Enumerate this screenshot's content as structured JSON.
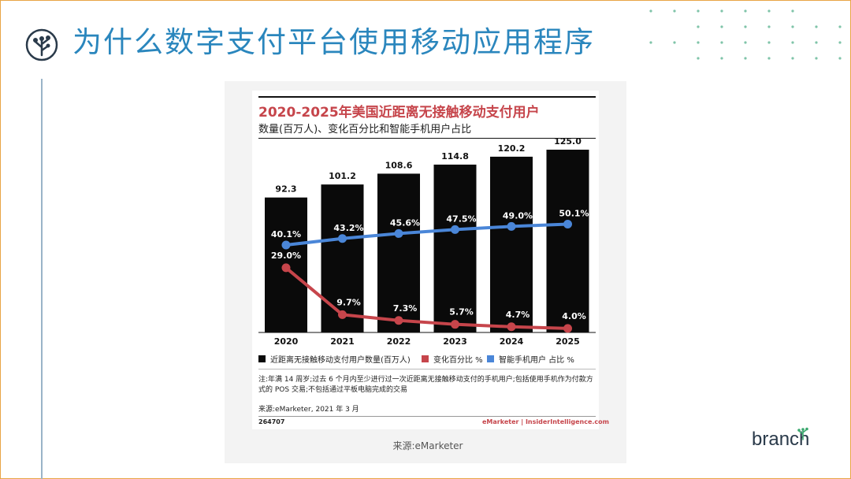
{
  "slide": {
    "title": "为什么数字支付平台使用移动应用程序",
    "caption": "来源:eMarketer",
    "brand": "branch"
  },
  "colors": {
    "title": "#2a86bd",
    "bar": "#0a0a0a",
    "change_line": "#c6454b",
    "smartphone_line": "#4a86d8",
    "frame": "#e8a545"
  },
  "icons": [
    "tree-logo-icon",
    "dot-grid-decoration",
    "sprig-icon"
  ],
  "chart_data": {
    "type": "bar",
    "title": "2020-2025年美国近距离无接触移动支付用户",
    "subtitle": "数量(百万人)、变化百分比和智能手机用户占比",
    "categories": [
      "2020",
      "2021",
      "2022",
      "2023",
      "2024",
      "2025"
    ],
    "series": [
      {
        "name": "近距离无接触移动支付用户数量(百万人)",
        "kind": "bar",
        "values": [
          92.3,
          101.2,
          108.6,
          114.8,
          120.2,
          125.0
        ],
        "labels": [
          "92.3",
          "101.2",
          "108.6",
          "114.8",
          "120.2",
          "125.0"
        ]
      },
      {
        "name": "变化百分比 %",
        "kind": "line",
        "values": [
          29.0,
          9.7,
          7.3,
          5.7,
          4.7,
          4.0
        ],
        "labels": [
          "29.0%",
          "9.7%",
          "7.3%",
          "5.7%",
          "4.7%",
          "4.0%"
        ]
      },
      {
        "name": "智能手机用户 占比 %",
        "kind": "line",
        "values": [
          40.1,
          43.2,
          45.6,
          47.5,
          49.0,
          50.1
        ],
        "labels": [
          "40.1%",
          "43.2%",
          "45.6%",
          "47.5%",
          "49.0%",
          "50.1%"
        ]
      }
    ],
    "ylim": [
      0,
      125
    ],
    "grid": false,
    "legend": "bottom",
    "note": "注:年满 14 周岁;过去 6 个月内至少进行过一次近距离无接触移动支付的手机用户;包括使用手机作为付款方式的 POS 交易;不包括通过平板电脑完成的交易",
    "source": "来源:eMarketer, 2021 年 3 月",
    "chart_id": "264707",
    "footer_brand": "eMarketer | InsiderIntelligence.com"
  }
}
